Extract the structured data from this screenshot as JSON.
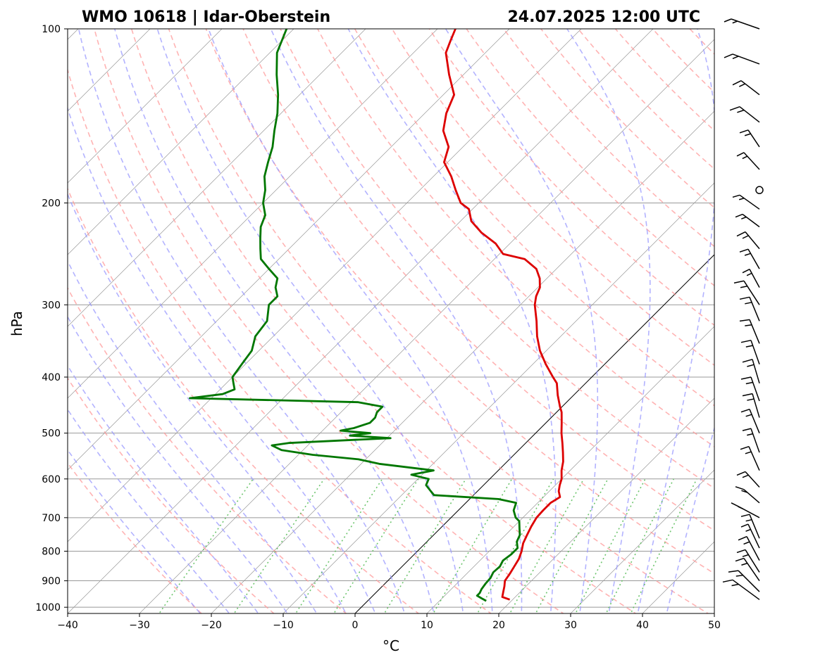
{
  "chart_data": {
    "type": "line",
    "chart_kind": "skew-T log-p diagram",
    "title_left": "WMO 10618 | Idar-Oberstein",
    "title_right": "24.07.2025 12:00 UTC",
    "xlabel": "°C",
    "ylabel": "hPa",
    "xlim": [
      -40,
      50
    ],
    "ylim": [
      1025,
      100
    ],
    "y_scale": "log",
    "grid": true,
    "x_ticks": [
      -40,
      -30,
      -20,
      -10,
      0,
      10,
      20,
      30,
      40,
      50
    ],
    "x_tick_labels": [
      "−40",
      "−30",
      "−20",
      "−10",
      "0",
      "10",
      "20",
      "30",
      "40",
      "50"
    ],
    "y_ticks": [
      1000,
      900,
      800,
      700,
      600,
      500,
      400,
      300,
      200,
      100
    ],
    "y_tick_labels": [
      "1000",
      "900",
      "800",
      "700",
      "600",
      "500",
      "400",
      "300",
      "200",
      "100"
    ],
    "colors": {
      "temperature": "#dd0000",
      "dewpoint": "#007700",
      "dry_adiabats": "#ff9999",
      "moist_adiabats": "#9999ff",
      "mixing_ratio": "#55bb55",
      "isotherms": "#999999",
      "zero_isotherm": "#000000",
      "wind_barbs": "#000000"
    },
    "series": [
      {
        "name": "",
        "role": "temperature",
        "points": [
          [
            970,
            19.6
          ],
          [
            960,
            18.2
          ],
          [
            940,
            17.6
          ],
          [
            920,
            17.0
          ],
          [
            900,
            16.3
          ],
          [
            875,
            16.0
          ],
          [
            850,
            15.6
          ],
          [
            825,
            15.2
          ],
          [
            800,
            14.5
          ],
          [
            775,
            13.6
          ],
          [
            750,
            13.0
          ],
          [
            725,
            12.4
          ],
          [
            700,
            11.9
          ],
          [
            680,
            11.8
          ],
          [
            660,
            11.8
          ],
          [
            645,
            12.3
          ],
          [
            630,
            11.3
          ],
          [
            615,
            10.6
          ],
          [
            600,
            10.0
          ],
          [
            580,
            8.8
          ],
          [
            560,
            7.8
          ],
          [
            540,
            6.5
          ],
          [
            520,
            5.1
          ],
          [
            500,
            3.6
          ],
          [
            480,
            2.2
          ],
          [
            460,
            0.7
          ],
          [
            450,
            -0.3
          ],
          [
            430,
            -2.2
          ],
          [
            410,
            -4.0
          ],
          [
            400,
            -5.4
          ],
          [
            380,
            -8.2
          ],
          [
            360,
            -10.9
          ],
          [
            340,
            -13.3
          ],
          [
            320,
            -15.5
          ],
          [
            300,
            -18.0
          ],
          [
            290,
            -19.0
          ],
          [
            280,
            -19.7
          ],
          [
            270,
            -21.0
          ],
          [
            260,
            -22.8
          ],
          [
            250,
            -25.8
          ],
          [
            245,
            -29.5
          ],
          [
            235,
            -32.0
          ],
          [
            225,
            -35.5
          ],
          [
            215,
            -38.5
          ],
          [
            205,
            -40.5
          ],
          [
            200,
            -42.5
          ],
          [
            190,
            -45.0
          ],
          [
            180,
            -47.5
          ],
          [
            170,
            -50.5
          ],
          [
            160,
            -52.0
          ],
          [
            150,
            -55.0
          ],
          [
            140,
            -57.0
          ],
          [
            130,
            -58.5
          ],
          [
            120,
            -62.0
          ],
          [
            110,
            -65.5
          ],
          [
            105,
            -66.5
          ],
          [
            100,
            -67.5
          ]
        ]
      },
      {
        "name": "",
        "role": "dewpoint",
        "points": [
          [
            975,
            16.5
          ],
          [
            965,
            15.5
          ],
          [
            955,
            14.5
          ],
          [
            945,
            14.5
          ],
          [
            930,
            14.2
          ],
          [
            910,
            14.0
          ],
          [
            890,
            13.9
          ],
          [
            870,
            13.5
          ],
          [
            850,
            13.6
          ],
          [
            830,
            13.2
          ],
          [
            810,
            13.5
          ],
          [
            790,
            13.5
          ],
          [
            770,
            12.5
          ],
          [
            750,
            12.0
          ],
          [
            730,
            11.0
          ],
          [
            710,
            10.0
          ],
          [
            700,
            9.0
          ],
          [
            680,
            7.7
          ],
          [
            660,
            7.0
          ],
          [
            650,
            4.0
          ],
          [
            640,
            -5.5
          ],
          [
            630,
            -6.5
          ],
          [
            615,
            -8.0
          ],
          [
            600,
            -8.5
          ],
          [
            590,
            -11.5
          ],
          [
            580,
            -9.0
          ],
          [
            565,
            -17.5
          ],
          [
            555,
            -21.0
          ],
          [
            545,
            -28.0
          ],
          [
            535,
            -33.0
          ],
          [
            525,
            -35.0
          ],
          [
            520,
            -33.0
          ],
          [
            510,
            -19.5
          ],
          [
            505,
            -25.5
          ],
          [
            500,
            -23.0
          ],
          [
            495,
            -27.5
          ],
          [
            490,
            -26.0
          ],
          [
            480,
            -24.5
          ],
          [
            470,
            -24.5
          ],
          [
            460,
            -25.0
          ],
          [
            450,
            -25.0
          ],
          [
            442,
            -29.0
          ],
          [
            435,
            -53.0
          ],
          [
            428,
            -49.0
          ],
          [
            420,
            -48.0
          ],
          [
            410,
            -49.0
          ],
          [
            400,
            -50.0
          ],
          [
            380,
            -50.5
          ],
          [
            360,
            -51.0
          ],
          [
            340,
            -52.5
          ],
          [
            320,
            -53.0
          ],
          [
            300,
            -55.0
          ],
          [
            290,
            -55.0
          ],
          [
            280,
            -56.5
          ],
          [
            270,
            -57.5
          ],
          [
            260,
            -60.0
          ],
          [
            250,
            -62.5
          ],
          [
            240,
            -64.0
          ],
          [
            230,
            -65.5
          ],
          [
            220,
            -67.0
          ],
          [
            210,
            -68.0
          ],
          [
            200,
            -70.0
          ],
          [
            190,
            -71.5
          ],
          [
            180,
            -73.5
          ],
          [
            170,
            -75.0
          ],
          [
            160,
            -76.5
          ],
          [
            150,
            -78.5
          ],
          [
            140,
            -80.5
          ],
          [
            130,
            -83.0
          ],
          [
            120,
            -86.0
          ],
          [
            110,
            -89.0
          ],
          [
            100,
            -91.0
          ]
        ]
      }
    ],
    "wind_barbs_shown": true
  }
}
